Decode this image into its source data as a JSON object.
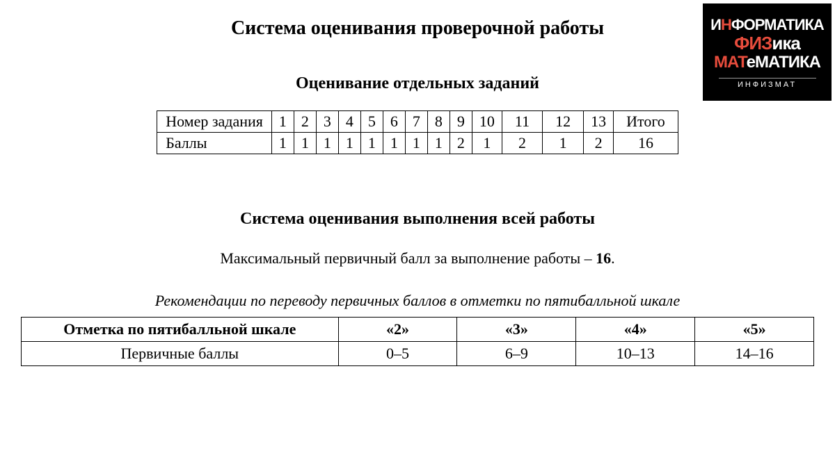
{
  "logo": {
    "line1_parts": [
      {
        "text": "И",
        "color": "white"
      },
      {
        "text": "Н",
        "color": "red"
      },
      {
        "text": "ФОРМАТИКА",
        "color": "white"
      }
    ],
    "line2_parts": [
      {
        "text": "ФИЗ",
        "color": "red"
      },
      {
        "text": "ика",
        "color": "white"
      }
    ],
    "line3_parts": [
      {
        "text": "МАТ",
        "color": "red"
      },
      {
        "text": "еМАТИКА",
        "color": "white"
      }
    ],
    "caption": "ИНФИЗМАТ"
  },
  "main_title": "Система оценивания проверочной работы",
  "sub_title": "Оценивание отдельных заданий",
  "table1": {
    "row1_header": "Номер задания",
    "row2_header": "Баллы",
    "task_numbers": [
      "1",
      "2",
      "3",
      "4",
      "5",
      "6",
      "7",
      "8",
      "9",
      "10",
      "11",
      "12",
      "13",
      "Итого"
    ],
    "points": [
      "1",
      "1",
      "1",
      "1",
      "1",
      "1",
      "1",
      "1",
      "2",
      "1",
      "2",
      "1",
      "2",
      "16"
    ]
  },
  "section_title": "Система оценивания выполнения всей работы",
  "max_score_prefix": "Максимальный первичный балл за выполнение работы – ",
  "max_score_value": "16",
  "max_score_suffix": ".",
  "italic_note": "Рекомендации по переводу первичных баллов в отметки по пятибалльной шкале",
  "table2": {
    "header_label": "Отметка по пятибалльной шкале",
    "row_label": "Первичные баллы",
    "grades": [
      "«2»",
      "«3»",
      "«4»",
      "«5»"
    ],
    "ranges": [
      "0–5",
      "6–9",
      "10–13",
      "14–16"
    ]
  },
  "styling": {
    "background_color": "#ffffff",
    "text_color": "#000000",
    "border_color": "#000000",
    "logo_bg": "#000000",
    "logo_red": "#e74c3c",
    "logo_white": "#ffffff",
    "title_fontsize": 28,
    "subtitle_fontsize": 24,
    "body_fontsize": 22,
    "font_family": "Times New Roman"
  }
}
